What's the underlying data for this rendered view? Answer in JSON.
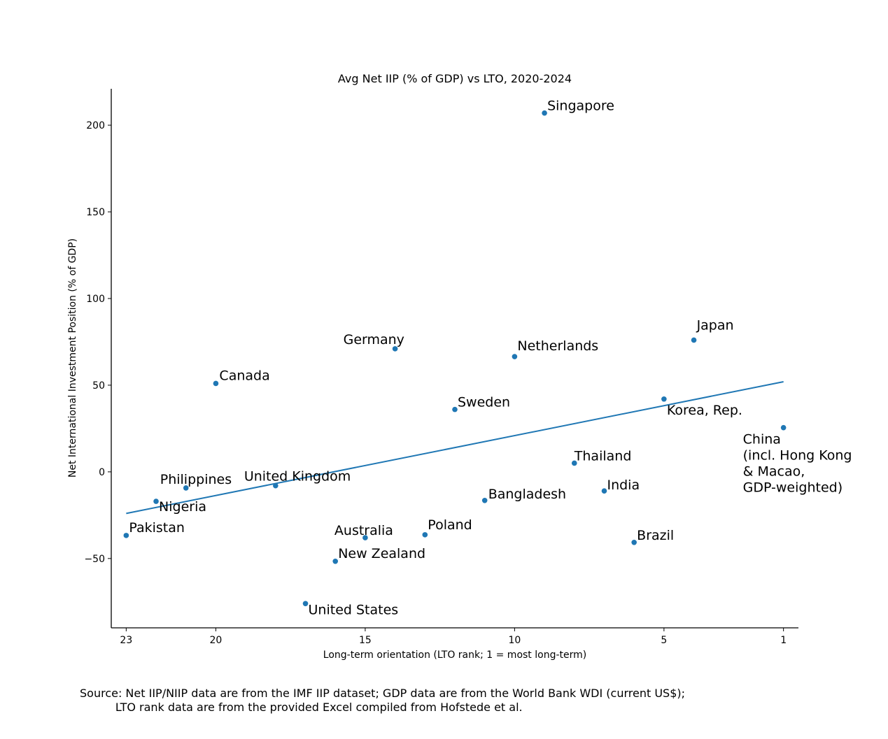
{
  "chart_data": {
    "type": "scatter",
    "title": "Avg Net IIP (% of GDP) vs LTO, 2020-2024",
    "xlabel": "Long-term orientation (LTO rank; 1 = most long-term)",
    "ylabel": "Net International Investment Position (% of GDP)",
    "xlim": [
      23.5,
      0.5
    ],
    "ylim": [
      -90,
      221
    ],
    "x_ticks": [
      23,
      20,
      15,
      10,
      5,
      1
    ],
    "y_ticks": [
      -50,
      0,
      50,
      100,
      150,
      200
    ],
    "y_tick_labels": [
      "−50",
      "0",
      "50",
      "100",
      "150",
      "200"
    ],
    "grid": false,
    "point_color": "#1f77b4",
    "points": [
      {
        "name": "Singapore",
        "x": 9,
        "y": 207
      },
      {
        "name": "Japan",
        "x": 4,
        "y": 76
      },
      {
        "name": "Germany",
        "x": 14,
        "y": 71
      },
      {
        "name": "Netherlands",
        "x": 10,
        "y": 66.5
      },
      {
        "name": "Canada",
        "x": 20,
        "y": 51
      },
      {
        "name": "Korea, Rep.",
        "x": 5,
        "y": 42
      },
      {
        "name": "Sweden",
        "x": 12,
        "y": 36
      },
      {
        "name": "China\n(incl. Hong Kong\n& Macao,\nGDP-weighted)",
        "x": 1,
        "y": 25.5
      },
      {
        "name": "Thailand",
        "x": 8,
        "y": 5
      },
      {
        "name": "United Kingdom",
        "x": 18,
        "y": -8
      },
      {
        "name": "Philippines",
        "x": 21,
        "y": -9.3
      },
      {
        "name": "India",
        "x": 7,
        "y": -11
      },
      {
        "name": "Bangladesh",
        "x": 11,
        "y": -16.5
      },
      {
        "name": "Nigeria",
        "x": 22,
        "y": -17
      },
      {
        "name": "Pakistan",
        "x": 23,
        "y": -36.7
      },
      {
        "name": "Poland",
        "x": 13,
        "y": -36.3
      },
      {
        "name": "Australia",
        "x": 15,
        "y": -38
      },
      {
        "name": "Brazil",
        "x": 6,
        "y": -40.7
      },
      {
        "name": "New Zealand",
        "x": 16,
        "y": -51.6
      },
      {
        "name": "United States",
        "x": 17,
        "y": -76
      }
    ],
    "trendline": {
      "x": [
        23,
        1
      ],
      "y": [
        -24,
        52
      ]
    }
  },
  "source_note": {
    "line1": "Source: Net IIP/NIIP data are from the IMF IIP dataset; GDP data are from the World Bank WDI (current US$);",
    "line2": "          LTO rank data are from the provided Excel compiled from Hofstede et al."
  }
}
